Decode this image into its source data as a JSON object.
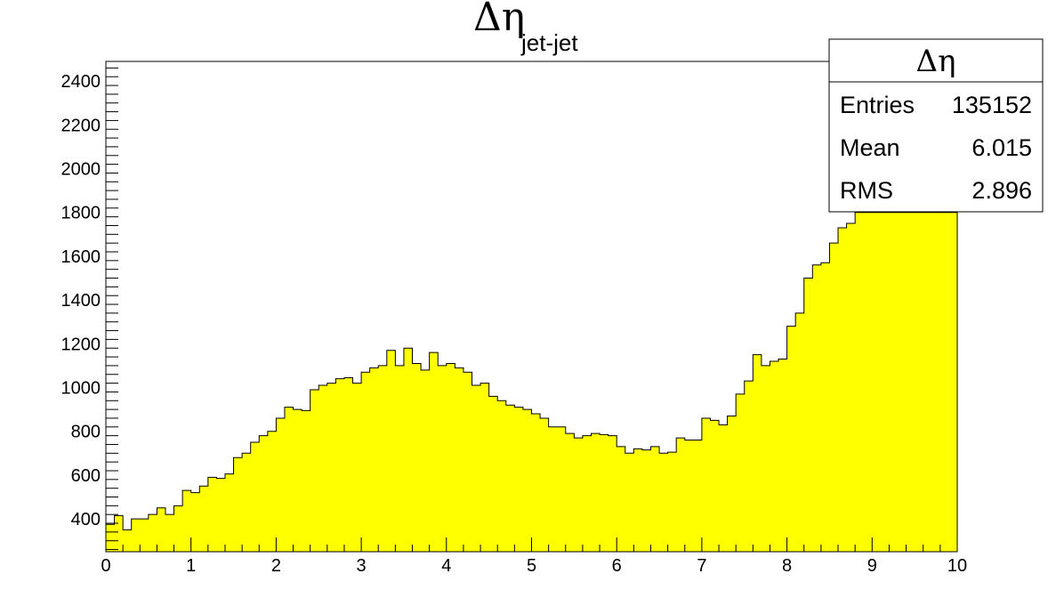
{
  "chart_data": {
    "type": "bar",
    "histogram": true,
    "title": "Δη",
    "title_subscript": "jet-jet",
    "xlabel": "",
    "ylabel": "",
    "xlim": [
      0,
      10
    ],
    "ylim": [
      250,
      2490
    ],
    "bin_width": 0.1,
    "fill_color": "#ffff00",
    "line_color": "#000000",
    "x_ticks": [
      0,
      1,
      2,
      3,
      4,
      5,
      6,
      7,
      8,
      9,
      10
    ],
    "y_ticks": [
      400,
      600,
      800,
      1000,
      1200,
      1400,
      1600,
      1800,
      2000,
      2200,
      2400
    ],
    "values": [
      375,
      415,
      350,
      400,
      400,
      420,
      450,
      420,
      460,
      530,
      520,
      550,
      590,
      585,
      605,
      680,
      700,
      750,
      780,
      800,
      860,
      910,
      900,
      895,
      990,
      1010,
      1020,
      1040,
      1045,
      1020,
      1070,
      1090,
      1100,
      1170,
      1100,
      1180,
      1110,
      1080,
      1160,
      1100,
      1110,
      1090,
      1070,
      1010,
      1020,
      960,
      940,
      920,
      910,
      900,
      880,
      860,
      820,
      820,
      790,
      770,
      780,
      790,
      785,
      780,
      730,
      700,
      720,
      715,
      730,
      700,
      705,
      770,
      760,
      760,
      860,
      850,
      830,
      870,
      970,
      1030,
      1150,
      1100,
      1120,
      1130,
      1280,
      1340,
      1500,
      1560,
      1570,
      1660,
      1730,
      1750,
      1800,
      1800,
      1800,
      1800,
      1800,
      1800,
      1800,
      1800,
      1800,
      1800,
      1800,
      1800
    ],
    "stats_box": {
      "title": "Δη",
      "rows": [
        {
          "label": "Entries",
          "value": "135152"
        },
        {
          "label": "Mean",
          "value": "6.015"
        },
        {
          "label": "RMS",
          "value": "2.896"
        }
      ]
    }
  }
}
